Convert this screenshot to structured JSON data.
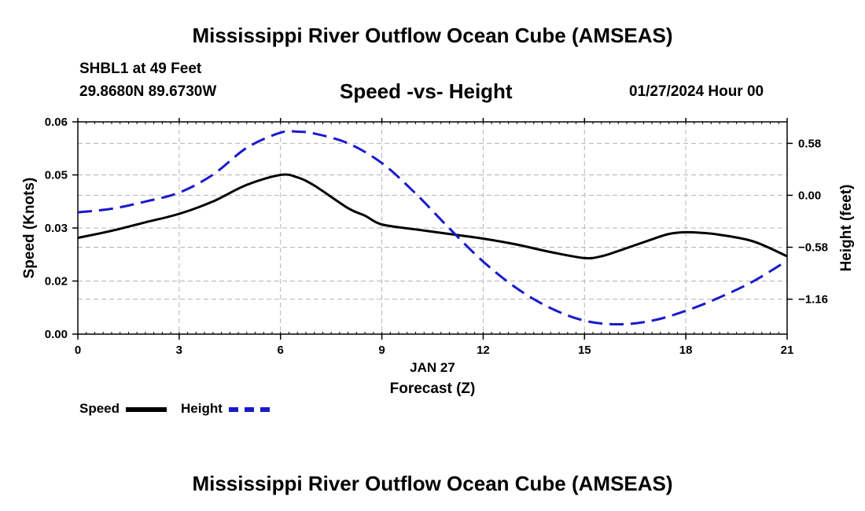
{
  "header": {
    "title": "Mississippi River Outflow Ocean Cube (AMSEAS)",
    "station": "SHBL1 at 49 Feet",
    "coords": "29.8680N  89.6730W",
    "subtitle": "Speed -vs- Height",
    "datetime": "01/27/2024 Hour 00"
  },
  "footer": {
    "title": "Mississippi River Outflow Ocean Cube (AMSEAS)"
  },
  "legend": {
    "speed_label": "Speed",
    "height_label": "Height"
  },
  "colors": {
    "speed": "#000000",
    "height": "#1a1acc",
    "grid": "#b4b4b4"
  },
  "chart_data": {
    "type": "line",
    "title": "Speed -vs- Height",
    "xlabel": "Forecast (Z)",
    "xlabel_date": "JAN 27",
    "ylabel": "Speed (Knots)",
    "y2label": "Height (feet)",
    "xlim": [
      0,
      21
    ],
    "ylim": [
      0.0,
      0.06
    ],
    "y2lim": [
      -1.55,
      0.82
    ],
    "x_ticks": [
      0,
      3,
      6,
      9,
      12,
      15,
      18,
      21
    ],
    "y_ticks": [
      {
        "value": 0.0,
        "label": "0.00"
      },
      {
        "value": 0.015,
        "label": "0.02"
      },
      {
        "value": 0.03,
        "label": "0.03"
      },
      {
        "value": 0.045,
        "label": "0.05"
      },
      {
        "value": 0.06,
        "label": "0.06"
      }
    ],
    "y2_ticks": [
      {
        "value": 0.58,
        "label": "0.58"
      },
      {
        "value": 0.0,
        "label": "0.00"
      },
      {
        "value": -0.58,
        "label": "−0.58"
      },
      {
        "value": -1.16,
        "label": "−1.16"
      }
    ],
    "grid": true,
    "series": [
      {
        "name": "Speed",
        "axis": "left",
        "style": "solid",
        "x": [
          0,
          1,
          2,
          3,
          4,
          5,
          6,
          6.5,
          7,
          8,
          8.5,
          9,
          10,
          11,
          12,
          13,
          14,
          15,
          15.5,
          16,
          17,
          17.5,
          18,
          18.5,
          19,
          20,
          21
        ],
        "values": [
          0.0272,
          0.0292,
          0.0316,
          0.034,
          0.0375,
          0.0422,
          0.045,
          0.0443,
          0.042,
          0.0356,
          0.0335,
          0.031,
          0.0296,
          0.0283,
          0.027,
          0.0253,
          0.0232,
          0.0215,
          0.022,
          0.0235,
          0.0268,
          0.0283,
          0.0288,
          0.0286,
          0.0281,
          0.0262,
          0.022
        ]
      },
      {
        "name": "Height",
        "axis": "right",
        "style": "dashed",
        "x": [
          0,
          1,
          2,
          3,
          4,
          5,
          6,
          6.5,
          7,
          8,
          9,
          10,
          11,
          12,
          13,
          14,
          15,
          16,
          17,
          18,
          19,
          20,
          21
        ],
        "values": [
          -0.19,
          -0.15,
          -0.07,
          0.03,
          0.23,
          0.53,
          0.7,
          0.71,
          0.69,
          0.58,
          0.36,
          0.02,
          -0.37,
          -0.74,
          -1.04,
          -1.26,
          -1.4,
          -1.44,
          -1.4,
          -1.29,
          -1.14,
          -0.96,
          -0.73
        ]
      }
    ]
  }
}
